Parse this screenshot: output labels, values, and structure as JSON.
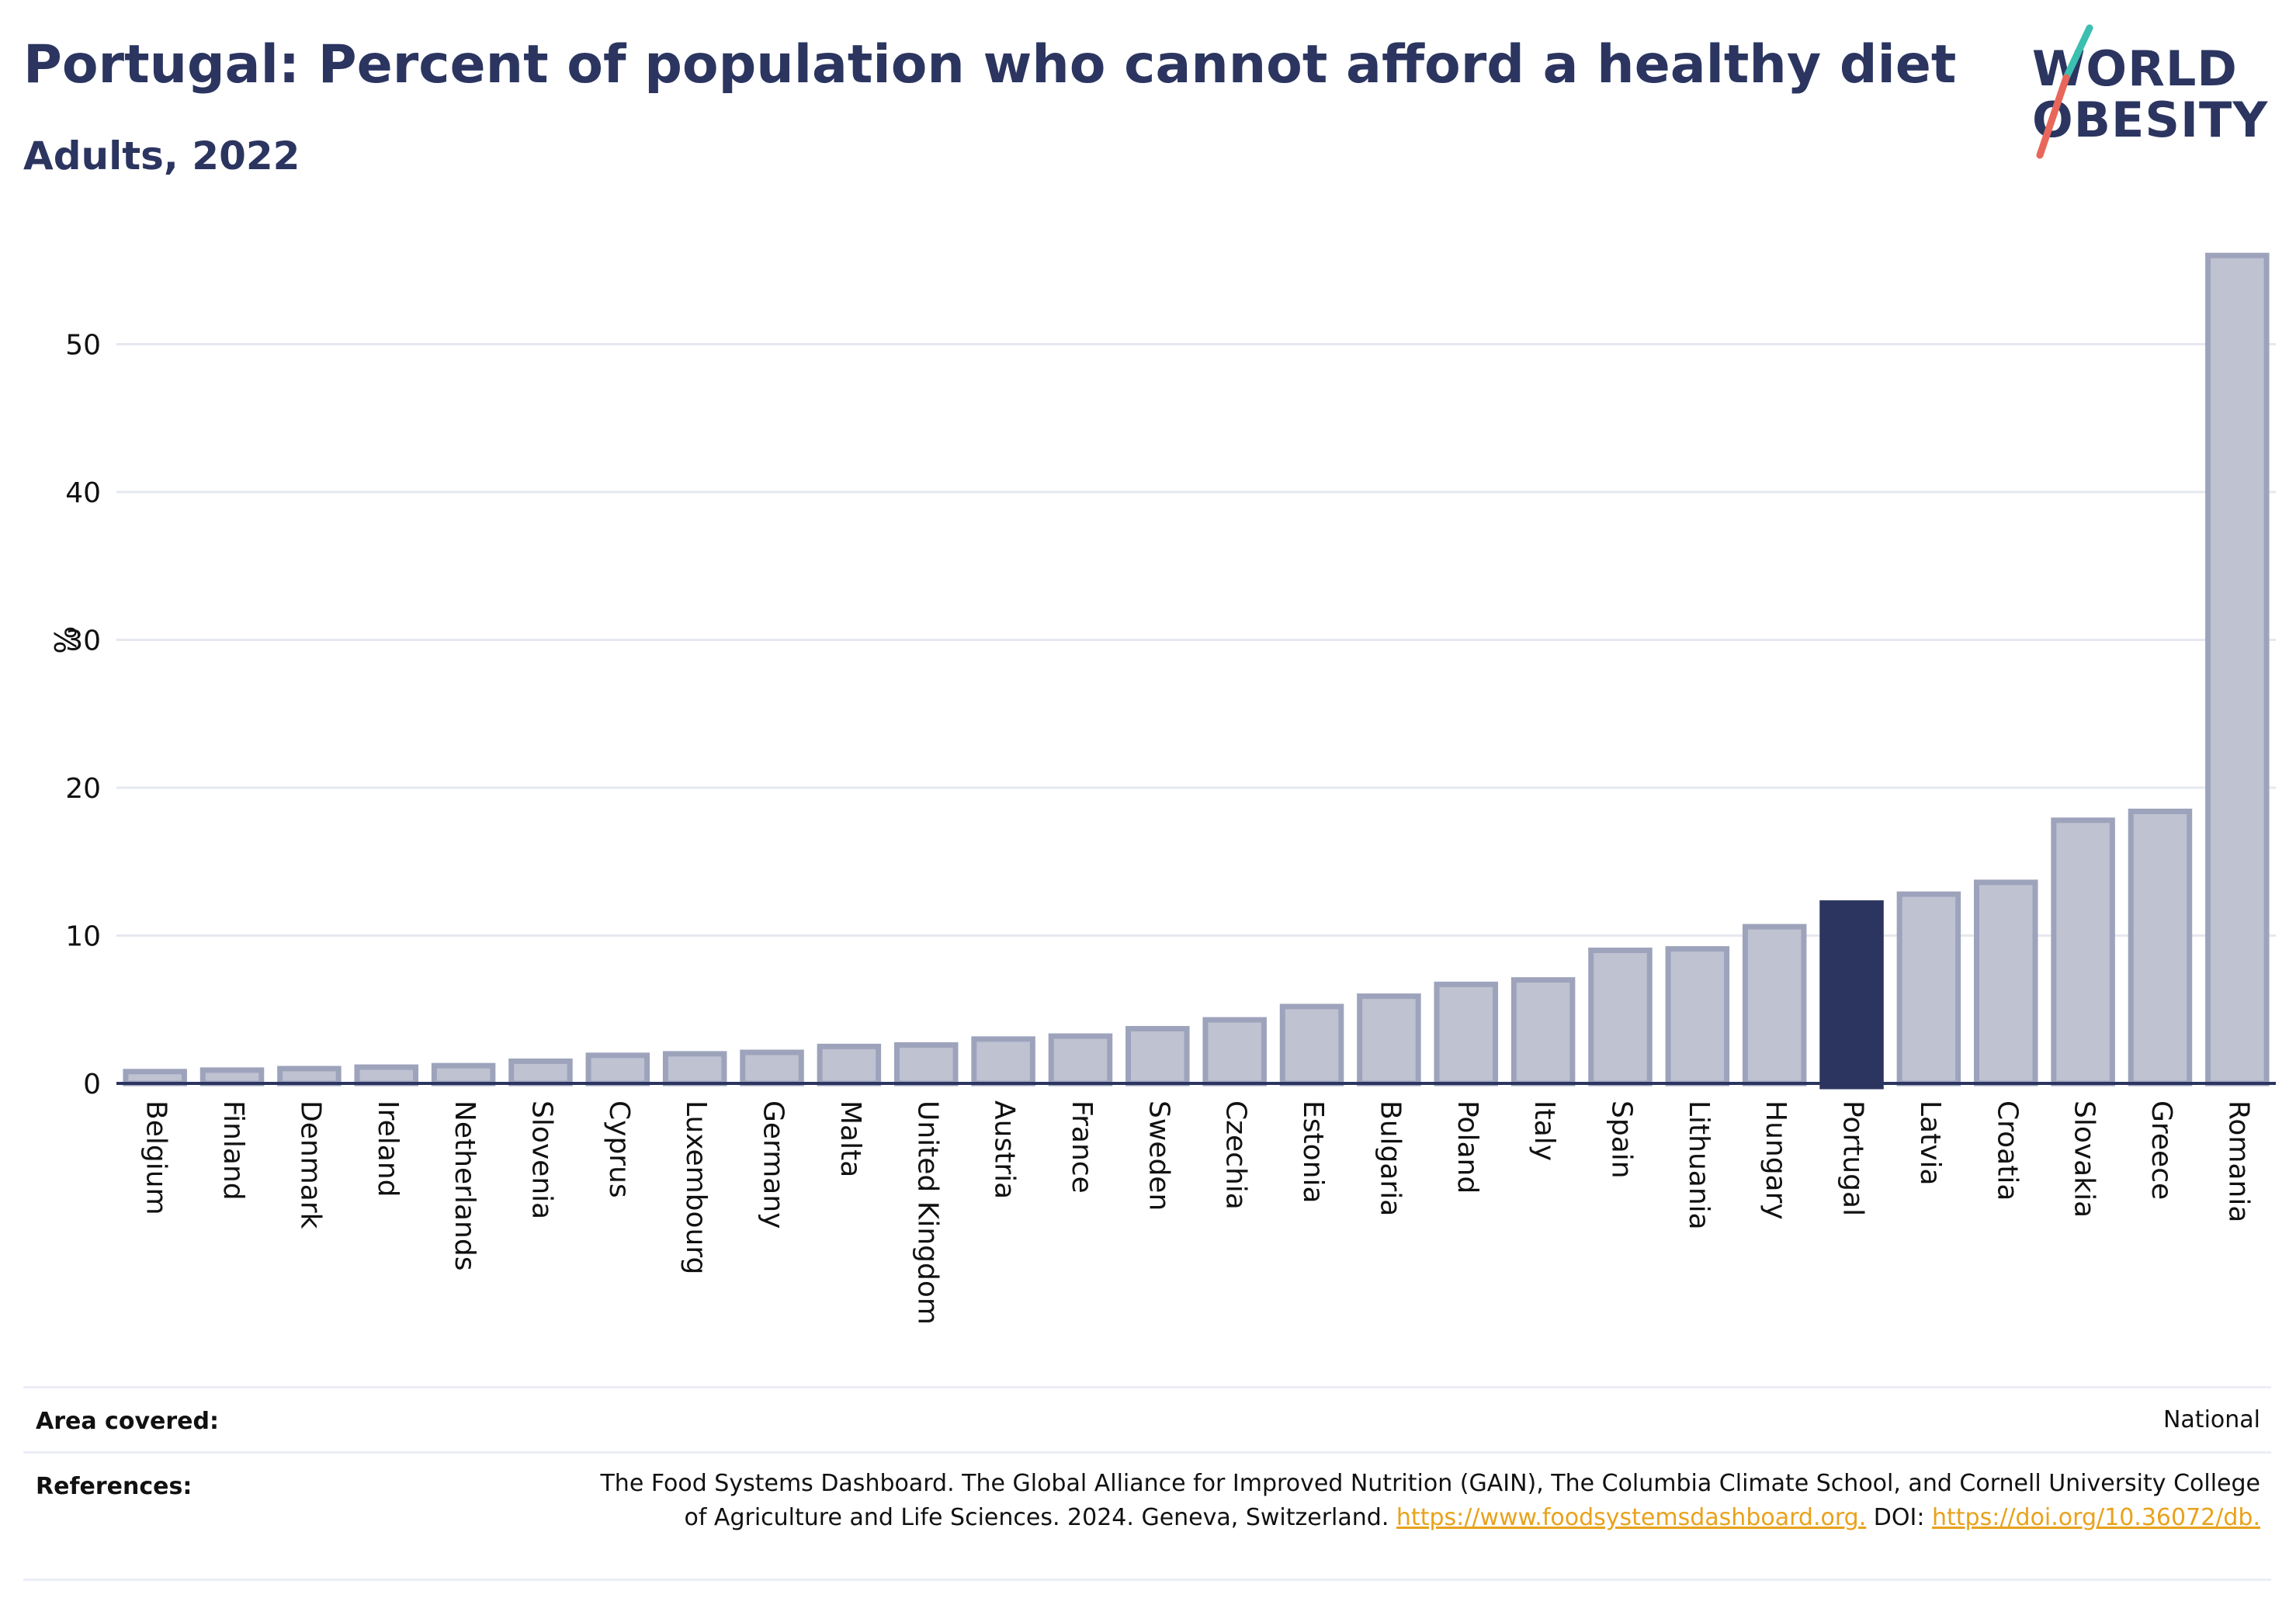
{
  "header": {
    "title": "Portugal: Percent of population who cannot afford a healthy diet",
    "subtitle": "Adults, 2022"
  },
  "logo": {
    "line1": "WORLD",
    "line2": "OBESITY",
    "slash_colors": [
      "#3bbfb0",
      "#e8675a"
    ]
  },
  "colors": {
    "bar": "#bfc2d1",
    "bar_border": "#9ea3bc",
    "highlight": "#2b3560",
    "grid": "#e6e8f0",
    "axis": "#2b3560",
    "link": "#e8a21b"
  },
  "chart_data": {
    "type": "bar",
    "ylabel": "%",
    "xlabel": "",
    "ylim": [
      0,
      57
    ],
    "yticks": [
      0,
      10,
      20,
      30,
      40,
      50
    ],
    "grid": true,
    "highlight": "Portugal",
    "categories": [
      "Belgium",
      "Finland",
      "Denmark",
      "Ireland",
      "Netherlands",
      "Slovenia",
      "Cyprus",
      "Luxembourg",
      "Germany",
      "Malta",
      "United Kingdom",
      "Austria",
      "France",
      "Sweden",
      "Czechia",
      "Estonia",
      "Bulgaria",
      "Poland",
      "Italy",
      "Spain",
      "Lithuania",
      "Hungary",
      "Portugal",
      "Latvia",
      "Croatia",
      "Slovakia",
      "Greece",
      "Romania"
    ],
    "values": [
      0.8,
      0.9,
      1.0,
      1.1,
      1.2,
      1.5,
      1.9,
      2.0,
      2.1,
      2.5,
      2.6,
      3.0,
      3.2,
      3.7,
      4.3,
      5.2,
      5.9,
      6.7,
      7.0,
      9.0,
      9.1,
      10.6,
      12.2,
      12.8,
      13.6,
      17.8,
      18.4,
      56.0
    ]
  },
  "footer": {
    "area_label": "Area covered:",
    "area_value": "National",
    "references_label": "References:",
    "references_text": "The Food Systems Dashboard. The Global Alliance for Improved Nutrition (GAIN), The Columbia Climate School, and Cornell University College of Agriculture and Life Sciences. 2024. Geneva, Switzerland.",
    "references_link": "https://www.foodsystemsdashboard.org.",
    "doi_label": "DOI:",
    "doi_link": "https://doi.org/10.36072/db."
  }
}
